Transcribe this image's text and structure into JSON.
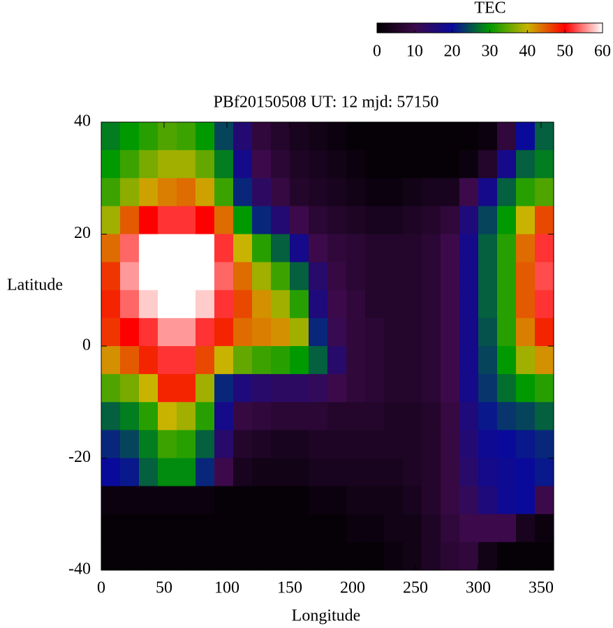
{
  "chart_data": {
    "type": "heatmap",
    "title": "PBf20150508  UT: 12  mjd: 57150",
    "x_label": "Longitude",
    "y_label": "Latitude",
    "colorbar_title": "TEC",
    "clim": [
      0,
      60
    ],
    "cticks": [
      0,
      10,
      20,
      30,
      40,
      50,
      60
    ],
    "colormap": [
      "#000000",
      "#3c0a4a",
      "#0a0a9a",
      "#009a00",
      "#c8b400",
      "#ff0000",
      "#ffffff"
    ],
    "xlim": [
      0,
      360
    ],
    "xticks": [
      0,
      50,
      100,
      150,
      200,
      250,
      300,
      350
    ],
    "ylim": [
      -40,
      40
    ],
    "yticks": [
      -40,
      -20,
      0,
      20,
      40
    ],
    "x": [
      7.5,
      22.5,
      37.5,
      52.5,
      67.5,
      82.5,
      97.5,
      112.5,
      127.5,
      142.5,
      157.5,
      172.5,
      187.5,
      202.5,
      217.5,
      232.5,
      247.5,
      262.5,
      277.5,
      292.5,
      307.5,
      322.5,
      337.5,
      352.5
    ],
    "y": [
      37.5,
      32.5,
      27.5,
      22.5,
      17.5,
      12.5,
      7.5,
      2.5,
      -2.5,
      -7.5,
      -12.5,
      -17.5,
      -22.5,
      -27.5,
      -32.5,
      -37.5
    ],
    "z": [
      [
        28,
        30,
        32,
        34,
        33,
        30,
        24,
        15,
        8,
        6,
        4,
        3,
        2,
        1,
        1,
        1,
        1,
        1,
        1,
        1,
        2,
        8,
        20,
        26
      ],
      [
        30,
        33,
        36,
        38,
        38,
        35,
        28,
        18,
        10,
        7,
        5,
        4,
        3,
        2,
        1,
        1,
        1,
        1,
        1,
        2,
        6,
        18,
        26,
        28
      ],
      [
        33,
        37,
        41,
        43,
        44,
        41,
        33,
        22,
        13,
        9,
        6,
        5,
        4,
        3,
        2,
        2,
        3,
        4,
        4,
        10,
        18,
        26,
        32,
        34
      ],
      [
        38,
        45,
        50,
        52,
        52,
        50,
        44,
        30,
        22,
        15,
        10,
        7,
        6,
        5,
        4,
        4,
        5,
        6,
        8,
        16,
        24,
        30,
        40,
        46
      ],
      [
        44,
        54,
        60,
        60,
        60,
        60,
        52,
        40,
        32,
        26,
        18,
        10,
        8,
        7,
        6,
        6,
        6,
        7,
        10,
        18,
        26,
        32,
        44,
        52
      ],
      [
        47,
        56,
        60,
        60,
        60,
        60,
        54,
        44,
        38,
        33,
        26,
        14,
        9,
        7,
        6,
        6,
        6,
        7,
        10,
        18,
        26,
        32,
        45,
        53
      ],
      [
        48,
        54,
        58,
        60,
        60,
        58,
        52,
        46,
        42,
        38,
        32,
        16,
        10,
        8,
        6,
        6,
        6,
        7,
        10,
        18,
        26,
        32,
        45,
        52
      ],
      [
        47,
        50,
        52,
        56,
        56,
        52,
        48,
        44,
        43,
        42,
        38,
        22,
        11,
        8,
        7,
        6,
        6,
        7,
        10,
        18,
        25,
        32,
        43,
        48
      ],
      [
        42,
        45,
        48,
        52,
        52,
        46,
        40,
        35,
        33,
        32,
        30,
        26,
        14,
        8,
        7,
        6,
        6,
        7,
        10,
        18,
        24,
        30,
        38,
        42
      ],
      [
        34,
        36,
        40,
        48,
        48,
        38,
        22,
        16,
        14,
        13,
        13,
        12,
        10,
        8,
        7,
        6,
        6,
        7,
        10,
        18,
        23,
        27,
        30,
        32
      ],
      [
        26,
        28,
        32,
        40,
        38,
        32,
        18,
        9,
        8,
        7,
        7,
        7,
        6,
        6,
        6,
        5,
        5,
        6,
        9,
        16,
        21,
        23,
        24,
        26
      ],
      [
        22,
        24,
        28,
        33,
        32,
        26,
        14,
        6,
        5,
        4,
        4,
        5,
        5,
        5,
        5,
        5,
        5,
        6,
        9,
        15,
        19,
        20,
        21,
        22
      ],
      [
        20,
        21,
        26,
        29,
        29,
        22,
        10,
        4,
        3,
        3,
        3,
        4,
        4,
        4,
        4,
        4,
        5,
        6,
        9,
        14,
        18,
        19,
        20,
        21
      ],
      [
        2,
        2,
        2,
        2,
        2,
        2,
        1,
        1,
        1,
        1,
        1,
        2,
        2,
        3,
        3,
        3,
        4,
        6,
        9,
        12,
        16,
        19,
        20,
        10
      ],
      [
        1,
        1,
        1,
        1,
        1,
        1,
        1,
        1,
        1,
        1,
        1,
        1,
        1,
        2,
        2,
        3,
        3,
        5,
        8,
        10,
        10,
        10,
        4,
        2
      ],
      [
        1,
        1,
        1,
        1,
        1,
        1,
        1,
        1,
        1,
        1,
        1,
        1,
        1,
        1,
        1,
        2,
        3,
        5,
        7,
        8,
        3,
        1,
        1,
        1
      ]
    ]
  }
}
